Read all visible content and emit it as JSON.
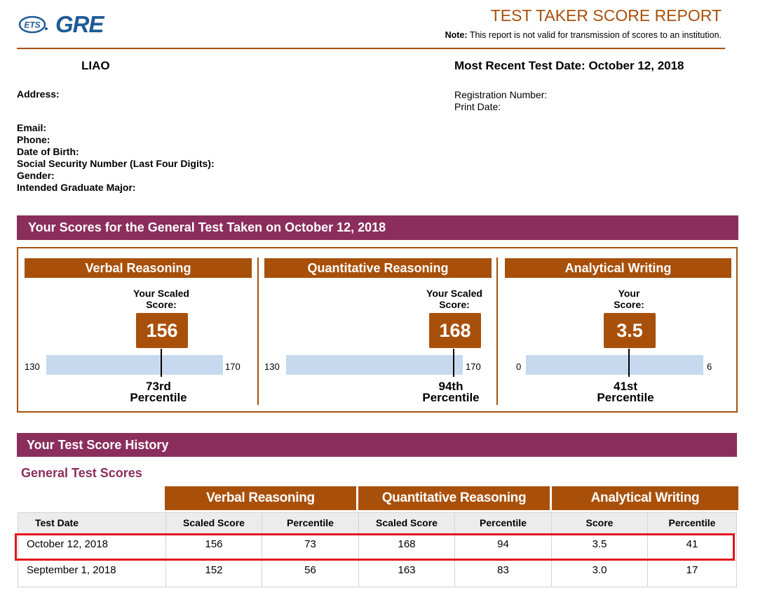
{
  "header": {
    "logo_icon": "ets-logo",
    "logo_text": "GRE",
    "title": "TEST TAKER SCORE REPORT",
    "note_label": "Note:",
    "note_text": "This report is not valid for transmission of scores to an institution.",
    "accent_color": "#a8500a",
    "banner_color": "#8b2e5c"
  },
  "candidate": {
    "name": "LIAO",
    "recent_test_date": "Most Recent Test Date: October 12, 2018",
    "address_label": "Address:",
    "registration_label": "Registration Number:",
    "print_date_label": "Print Date:",
    "email_label": "Email:",
    "phone_label": "Phone:",
    "dob_label": "Date of Birth:",
    "ssn_label": "Social Security Number (Last Four Digits):",
    "gender_label": "Gender:",
    "major_label": "Intended Graduate Major:"
  },
  "scores_banner": "Your Scores for the General Test Taken on October 12, 2018",
  "sections": [
    {
      "title": "Verbal Reasoning",
      "score_label_1": "Your Scaled",
      "score_label_2": "Score:",
      "score": "156",
      "score_value": 156,
      "min": "130",
      "max": "170",
      "min_value": 130,
      "max_value": 170,
      "percentile_1": "73rd",
      "percentile_2": "Percentile"
    },
    {
      "title": "Quantitative Reasoning",
      "score_label_1": "Your Scaled",
      "score_label_2": "Score:",
      "score": "168",
      "score_value": 168,
      "min": "130",
      "max": "170",
      "min_value": 130,
      "max_value": 170,
      "percentile_1": "94th",
      "percentile_2": "Percentile"
    },
    {
      "title": "Analytical Writing",
      "score_label_1": "Your",
      "score_label_2": "Score:",
      "score": "3.5",
      "score_value": 3.5,
      "min": "0",
      "max": "6",
      "min_value": 0,
      "max_value": 6,
      "percentile_1": "41st",
      "percentile_2": "Percentile"
    }
  ],
  "history": {
    "banner": "Your Test Score History",
    "subtitle": "General Test Scores",
    "group_headers": [
      "Verbal Reasoning",
      "Quantitative Reasoning",
      "Analytical Writing"
    ],
    "columns": [
      "Test Date",
      "Scaled Score",
      "Percentile",
      "Scaled Score",
      "Percentile",
      "Score",
      "Percentile"
    ],
    "rows": [
      [
        "October 12, 2018",
        "156",
        "73",
        "168",
        "94",
        "3.5",
        "41"
      ],
      [
        "September 1, 2018",
        "152",
        "56",
        "163",
        "83",
        "3.0",
        "17"
      ]
    ],
    "highlight_color": "#e3151f"
  }
}
